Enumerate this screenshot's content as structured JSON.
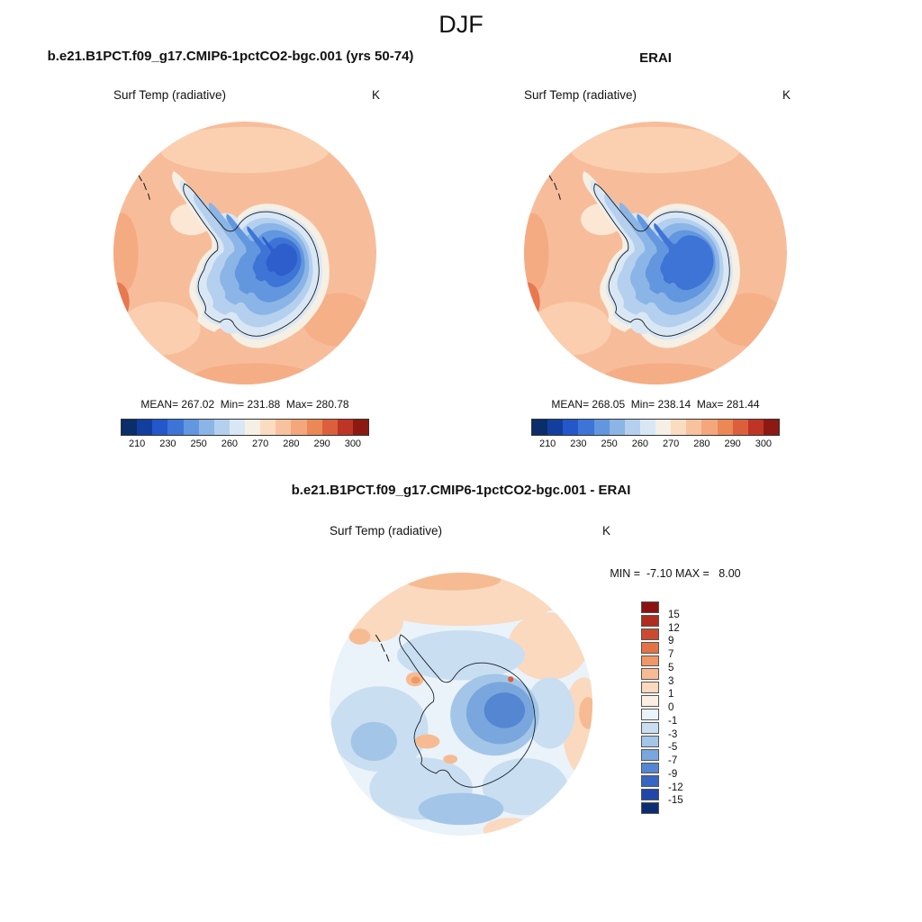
{
  "header": {
    "season": "DJF"
  },
  "panels": {
    "model": {
      "title": "b.e21.B1PCT.f09_g17.CMIP6-1pctCO2-bgc.001 (yrs 50-74)",
      "field": "Surf Temp (radiative)",
      "units": "K",
      "stats": "MEAN= 267.02  Min= 231.88  Max= 280.78"
    },
    "erai": {
      "title": "ERAI",
      "field": "Surf Temp (radiative)",
      "units": "K",
      "stats": "MEAN= 268.05  Min= 238.14  Max= 281.44"
    },
    "diff": {
      "title": "b.e21.B1PCT.f09_g17.CMIP6-1pctCO2-bgc.001 - ERAI",
      "field": "Surf Temp (radiative)",
      "units": "K",
      "minmax": "MIN =  -7.10 MAX =   8.00"
    }
  },
  "colorbars": {
    "temperature": {
      "tick_labels": [
        "210",
        "230",
        "250",
        "260",
        "270",
        "280",
        "290",
        "300"
      ],
      "colors": [
        "#0B2D69",
        "#123F9E",
        "#2457C9",
        "#3D74D6",
        "#6296DE",
        "#8BB5E6",
        "#B4D0EE",
        "#D9E7F5",
        "#F5EFE4",
        "#FADCC1",
        "#F8C29E",
        "#F4A67C",
        "#EC8756",
        "#DB5F3C",
        "#BE3526",
        "#8C1A12"
      ]
    },
    "difference": {
      "tick_labels": [
        "15",
        "12",
        "9",
        "7",
        "5",
        "3",
        "1",
        "0",
        "-1",
        "-3",
        "-5",
        "-7",
        "-9",
        "-12",
        "-15"
      ],
      "colors": [
        "#8C1210",
        "#B02C1E",
        "#CC4B2F",
        "#E37347",
        "#EF9866",
        "#F6BB92",
        "#FAD9BE",
        "#FBEFE3",
        "#EAF2FA",
        "#C9DEF1",
        "#A3C6E8",
        "#79A7DD",
        "#5486D2",
        "#3765C4",
        "#1F46A8",
        "#0D2D72"
      ]
    }
  },
  "chart_data": [
    {
      "type": "heatmap",
      "title": "b.e21.B1PCT.f09_g17.CMIP6-1pctCO2-bgc.001 (yrs 50-74)",
      "subtitle": "Surf Temp (radiative)",
      "season": "DJF",
      "units": "K",
      "projection": "south-polar-stereographic",
      "stats": {
        "mean": 267.02,
        "min": 231.88,
        "max": 280.78
      },
      "contour_levels": [
        210,
        220,
        230,
        240,
        250,
        255,
        260,
        265,
        270,
        275,
        280,
        285,
        290,
        295,
        300
      ],
      "colorbar_ticks": [
        210,
        230,
        250,
        260,
        270,
        280,
        290,
        300
      ],
      "description": "Antarctic continent interior cold (about 230-250 K, blue) with coldest core over East Antarctica; surrounding Southern Ocean warm (about 275-285 K, salmon/orange)."
    },
    {
      "type": "heatmap",
      "title": "ERAI",
      "subtitle": "Surf Temp (radiative)",
      "season": "DJF",
      "units": "K",
      "projection": "south-polar-stereographic",
      "stats": {
        "mean": 268.05,
        "min": 238.14,
        "max": 281.44
      },
      "contour_levels": [
        210,
        220,
        230,
        240,
        250,
        255,
        260,
        265,
        270,
        275,
        280,
        285,
        290,
        295,
        300
      ],
      "colorbar_ticks": [
        210,
        230,
        250,
        260,
        270,
        280,
        290,
        300
      ],
      "description": "ERAI reanalysis: same spatial pattern as the model, slightly warmer minimum over the East Antarctic plateau."
    },
    {
      "type": "heatmap",
      "title": "b.e21.B1PCT.f09_g17.CMIP6-1pctCO2-bgc.001 - ERAI",
      "subtitle": "Surf Temp (radiative)",
      "season": "DJF",
      "units": "K",
      "projection": "south-polar-stereographic",
      "stats": {
        "min": -7.1,
        "max": 8.0
      },
      "contour_levels": [
        -15,
        -12,
        -9,
        -7,
        -5,
        -3,
        -1,
        0,
        1,
        3,
        5,
        7,
        9,
        12,
        15
      ],
      "description": "Model minus ERAI difference: mostly 0 to -3 K (pale blue) over ocean, -5 to -7 K over the East Antarctic interior, +1 to +5 K (salmon) patches over the northern ocean ring and near the Antarctic Peninsula."
    }
  ]
}
